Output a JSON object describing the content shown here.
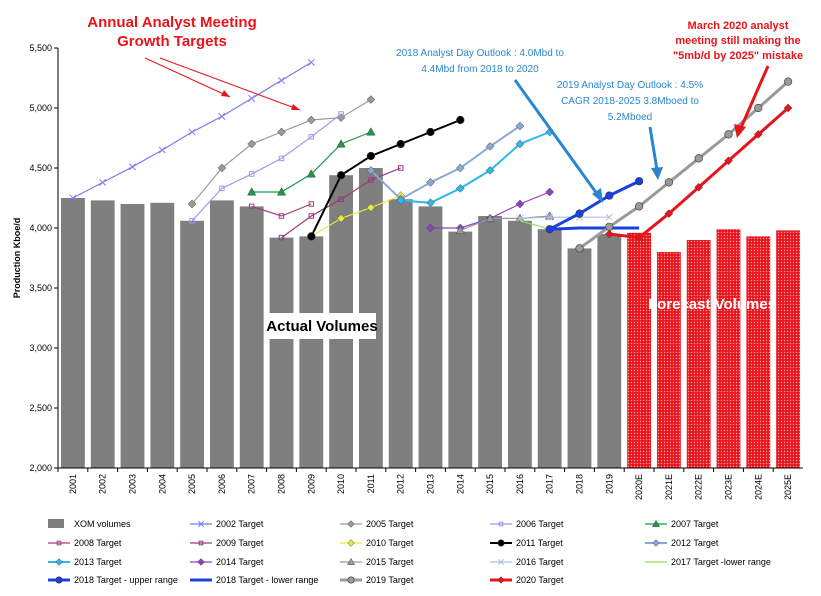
{
  "chart_data": {
    "type": "bar",
    "ylabel": "Production Kboe/d",
    "ylim": [
      2000,
      5500
    ],
    "yticks": [
      2000,
      2500,
      3000,
      3500,
      4000,
      4500,
      5000,
      5500
    ],
    "ytick_labels": [
      "2,000",
      "2,500",
      "3,000",
      "3,500",
      "4,000",
      "4,500",
      "5,000",
      "5,500"
    ],
    "categories": [
      "2001",
      "2002",
      "2003",
      "2004",
      "2005",
      "2006",
      "2007",
      "2008",
      "2009",
      "2010",
      "2011",
      "2012",
      "2013",
      "2014",
      "2015",
      "2016",
      "2017",
      "2018",
      "2019",
      "2020E",
      "2021E",
      "2022E",
      "2023E",
      "2024E",
      "2025E"
    ],
    "bars": [
      {
        "name": "XOM volumes",
        "color": "#7f7f7f",
        "values": [
          4250,
          4230,
          4200,
          4210,
          4060,
          4230,
          4180,
          3920,
          3930,
          4440,
          4500,
          4240,
          4180,
          3970,
          4100,
          4060,
          3990,
          3830,
          3950,
          null,
          null,
          null,
          null,
          null,
          null
        ]
      },
      {
        "name": "Forecast Volumes",
        "color": "#e8141b",
        "values": [
          null,
          null,
          null,
          null,
          null,
          null,
          null,
          null,
          null,
          null,
          null,
          null,
          null,
          null,
          null,
          null,
          null,
          null,
          null,
          3960,
          3800,
          3900,
          3990,
          3930,
          3980
        ]
      }
    ],
    "series": [
      {
        "name": "2002 Target",
        "color": "#7b7bf0",
        "marker": "x",
        "x": [
          "2001",
          "2002",
          "2003",
          "2004",
          "2005",
          "2006",
          "2007",
          "2008",
          "2009"
        ],
        "values": [
          4250,
          4380,
          4510,
          4650,
          4800,
          4930,
          5080,
          5230,
          5380
        ]
      },
      {
        "name": "2005 Target",
        "color": "#9a9a9a",
        "marker": "diamond",
        "x": [
          "2005",
          "2006",
          "2007",
          "2008",
          "2009",
          "2010",
          "2011"
        ],
        "values": [
          4200,
          4500,
          4700,
          4800,
          4900,
          4920,
          5070
        ]
      },
      {
        "name": "2006 Target",
        "color": "#9a9af0",
        "marker": "square",
        "x": [
          "2005",
          "2006",
          "2007",
          "2008",
          "2009",
          "2010"
        ],
        "values": [
          4060,
          4330,
          4450,
          4580,
          4760,
          4950
        ]
      },
      {
        "name": "2007 Target",
        "color": "#1a9a4a",
        "marker": "triangle",
        "x": [
          "2007",
          "2008",
          "2009",
          "2010",
          "2011"
        ],
        "values": [
          4300,
          4300,
          4450,
          4700,
          4800
        ]
      },
      {
        "name": "2008 Target",
        "color": "#a0407a",
        "marker": "square",
        "x": [
          "2007",
          "2008",
          "2009"
        ],
        "values": [
          4180,
          4100,
          4200
        ]
      },
      {
        "name": "2009 Target",
        "color": "#9a3a7a",
        "marker": "square",
        "x": [
          "2008",
          "2009",
          "2010",
          "2011",
          "2012"
        ],
        "values": [
          3920,
          4100,
          4240,
          4400,
          4500
        ]
      },
      {
        "name": "2010 Target",
        "color": "#e8e840",
        "marker": "diamond",
        "x": [
          "2009",
          "2010",
          "2011",
          "2012"
        ],
        "values": [
          3930,
          4080,
          4170,
          4270
        ]
      },
      {
        "name": "2011 Target",
        "color": "#000000",
        "marker": "circle",
        "x": [
          "2009",
          "2010",
          "2011",
          "2012",
          "2013",
          "2014"
        ],
        "values": [
          3930,
          4440,
          4600,
          4700,
          4800,
          4900
        ]
      },
      {
        "name": "2012 Target",
        "color": "#8aa8d8",
        "marker": "diamond",
        "x": [
          "2011",
          "2012",
          "2013",
          "2014",
          "2015",
          "2016"
        ],
        "values": [
          4480,
          4240,
          4380,
          4500,
          4680,
          4850
        ]
      },
      {
        "name": "2013 Target",
        "color": "#30b8e8",
        "marker": "diamond",
        "x": [
          "2012",
          "2013",
          "2014",
          "2015",
          "2016",
          "2017"
        ],
        "values": [
          4230,
          4210,
          4330,
          4480,
          4700,
          4800
        ]
      },
      {
        "name": "2014 Target",
        "color": "#9040c0",
        "marker": "diamond",
        "x": [
          "2013",
          "2014",
          "2015",
          "2016",
          "2017"
        ],
        "values": [
          4000,
          4000,
          4080,
          4200,
          4300
        ]
      },
      {
        "name": "2015 Target",
        "color": "#9a9a9a",
        "marker": "triangle",
        "x": [
          "2014",
          "2015",
          "2016",
          "2017"
        ],
        "values": [
          3980,
          4080,
          4080,
          4100
        ]
      },
      {
        "name": "2016 Target",
        "color": "#b0c0e0",
        "marker": "x",
        "x": [
          "2016",
          "2017",
          "2018",
          "2019"
        ],
        "values": [
          4080,
          4090,
          4090,
          4090
        ]
      },
      {
        "name": "2017 Target -lower range",
        "color": "#90e060",
        "marker": "none",
        "x": [
          "2016",
          "2017"
        ],
        "values": [
          4060,
          3990
        ]
      },
      {
        "name": "2018 Target - upper range",
        "color": "#1a40e0",
        "marker": "circle",
        "x": [
          "2017",
          "2018",
          "2019",
          "2020E"
        ],
        "values": [
          3990,
          4120,
          4270,
          4390
        ]
      },
      {
        "name": "2018 Target - lower range",
        "color": "#1a40e0",
        "marker": "none",
        "x": [
          "2017",
          "2018",
          "2019",
          "2020E"
        ],
        "values": [
          3990,
          4000,
          4000,
          4000
        ]
      },
      {
        "name": "2019 Target",
        "color": "#9a9a9a",
        "marker": "circle",
        "x": [
          "2018",
          "2019",
          "2020E",
          "2021E",
          "2022E",
          "2023E",
          "2024E",
          "2025E"
        ],
        "values": [
          3830,
          4010,
          4180,
          4380,
          4580,
          4780,
          5000,
          5220
        ]
      },
      {
        "name": "2020 Target",
        "color": "#e8141b",
        "marker": "diamond",
        "x": [
          "2019",
          "2020E",
          "2021E",
          "2022E",
          "2023E",
          "2024E",
          "2025E"
        ],
        "values": [
          3950,
          3920,
          4120,
          4340,
          4560,
          4780,
          5000
        ]
      }
    ],
    "legend": {
      "placement": "bottom",
      "items": [
        "XOM volumes",
        "2002 Target",
        "2005 Target",
        "2006 Target",
        "2007 Target",
        "2008 Target",
        "2009 Target",
        "2010 Target",
        "2011 Target",
        "2012 Target",
        "2013 Target",
        "2014 Target",
        "2015 Target",
        "2016 Target",
        "2017 Target -lower range",
        "2018 Target - upper range",
        "2018 Target - lower range",
        "2019 Target",
        "2020 Target"
      ]
    },
    "annotations": {
      "annual_meeting": [
        "Annual Analyst Meeting",
        "Growth Targets"
      ],
      "march_2020": [
        "March 2020 analyst",
        "meeting still making the",
        "\"5mb/d by 2025\" mistake"
      ],
      "outlook_2018": [
        "2018  Analyst Day Outlook  : 4.0Mbd to",
        "4.4Mbd from 2018 to 2020"
      ],
      "outlook_2019": [
        "2019  Analyst Day Outlook  : 4.5%",
        "CAGR 2018-2025  3.8Mboed to",
        "5.2Mboed"
      ],
      "actual_volumes": "Actual Volumes",
      "forecast_volumes": "Forecast Volumes"
    },
    "grid": false
  }
}
